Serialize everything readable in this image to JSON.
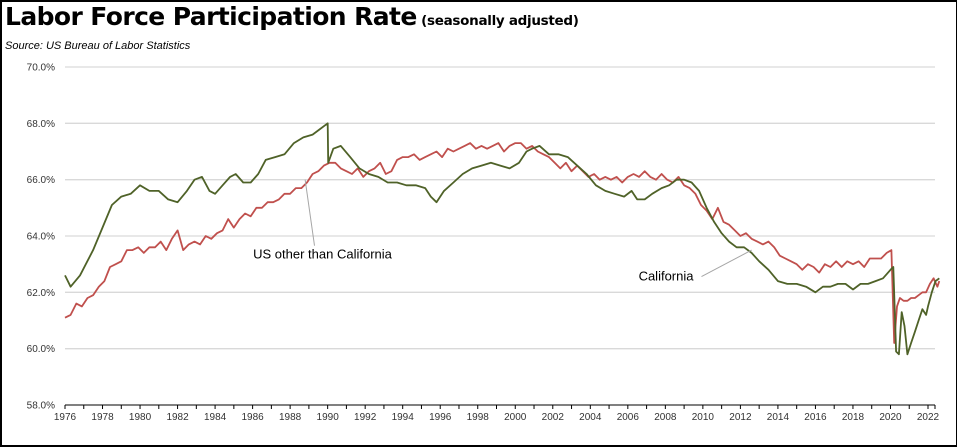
{
  "header": {
    "title": "Labor Force Participation Rate",
    "subtitle": "(seasonally adjusted)",
    "source": "Source:  US Bureau of Labor Statistics"
  },
  "chart_data": {
    "type": "line",
    "title": "Labor Force Participation Rate (seasonally adjusted)",
    "xlabel": "",
    "ylabel": "",
    "xlim": [
      1976,
      2022.7
    ],
    "ylim": [
      58.0,
      70.0
    ],
    "grid": true,
    "y_ticks": [
      "58.0%",
      "60.0%",
      "62.0%",
      "64.0%",
      "66.0%",
      "68.0%",
      "70.0%"
    ],
    "y_tick_values": [
      58,
      60,
      62,
      64,
      66,
      68,
      70
    ],
    "x_ticks": [
      "1976",
      "1978",
      "1980",
      "1982",
      "1984",
      "1986",
      "1988",
      "1990",
      "1992",
      "1994",
      "1996",
      "1998",
      "2000",
      "2002",
      "2004",
      "2006",
      "2008",
      "2010",
      "2012",
      "2014",
      "2016",
      "2018",
      "2020",
      "2022"
    ],
    "x_tick_values": [
      1976,
      1978,
      1980,
      1982,
      1984,
      1986,
      1988,
      1990,
      1992,
      1994,
      1996,
      1998,
      2000,
      2002,
      2004,
      2006,
      2008,
      2010,
      2012,
      2014,
      2016,
      2018,
      2020,
      2022
    ],
    "legend": "annotations",
    "series": [
      {
        "name": "California",
        "color": "#4f6228",
        "annotation": {
          "label": "California",
          "at": [
            2012.6,
            63.5
          ],
          "label_at": [
            2009.5,
            62.7
          ]
        },
        "x": [
          1976.0,
          1976.3,
          1976.8,
          1977.5,
          1978.0,
          1978.5,
          1979.0,
          1979.5,
          1980.0,
          1980.5,
          1981.0,
          1981.5,
          1982.0,
          1982.5,
          1982.9,
          1983.3,
          1983.7,
          1984.0,
          1984.4,
          1984.8,
          1985.1,
          1985.5,
          1985.9,
          1986.3,
          1986.7,
          1987.2,
          1987.7,
          1988.2,
          1988.7,
          1989.2,
          1989.6,
          1990.0,
          1990.03,
          1990.3,
          1990.7,
          1991.2,
          1991.7,
          1992.2,
          1992.7,
          1993.2,
          1993.7,
          1994.2,
          1994.7,
          1995.2,
          1995.5,
          1995.8,
          1996.2,
          1996.7,
          1997.2,
          1997.7,
          1998.2,
          1998.7,
          1999.2,
          1999.7,
          2000.2,
          2000.6,
          2000.9,
          2001.3,
          2001.8,
          2002.3,
          2002.8,
          2003.3,
          2003.8,
          2004.3,
          2004.8,
          2005.3,
          2005.8,
          2006.2,
          2006.5,
          2006.9,
          2007.3,
          2007.8,
          2008.2,
          2008.6,
          2009.0,
          2009.4,
          2009.8,
          2010.2,
          2010.6,
          2011.0,
          2011.4,
          2011.8,
          2012.2,
          2012.6,
          2013.0,
          2013.5,
          2014.0,
          2014.5,
          2015.0,
          2015.5,
          2016.0,
          2016.4,
          2016.8,
          2017.2,
          2017.6,
          2018.0,
          2018.4,
          2018.8,
          2019.2,
          2019.6,
          2020.0,
          2020.15,
          2020.3,
          2020.45,
          2020.6,
          2020.75,
          2020.9,
          2021.1,
          2021.3,
          2021.5,
          2021.7,
          2021.9,
          2022.0,
          2022.2,
          2022.4,
          2022.6
        ],
        "values": [
          62.6,
          62.2,
          62.6,
          63.5,
          64.3,
          65.1,
          65.4,
          65.5,
          65.8,
          65.6,
          65.6,
          65.3,
          65.2,
          65.6,
          66.0,
          66.1,
          65.6,
          65.5,
          65.8,
          66.1,
          66.2,
          65.9,
          65.9,
          66.2,
          66.7,
          66.8,
          66.9,
          67.3,
          67.5,
          67.6,
          67.8,
          68.0,
          66.6,
          67.1,
          67.2,
          66.8,
          66.4,
          66.2,
          66.1,
          65.9,
          65.9,
          65.8,
          65.8,
          65.7,
          65.4,
          65.2,
          65.6,
          65.9,
          66.2,
          66.4,
          66.5,
          66.6,
          66.5,
          66.4,
          66.6,
          67.0,
          67.1,
          67.2,
          66.9,
          66.9,
          66.8,
          66.5,
          66.2,
          65.8,
          65.6,
          65.5,
          65.4,
          65.6,
          65.3,
          65.3,
          65.5,
          65.7,
          65.8,
          66.0,
          66.0,
          65.9,
          65.6,
          65.0,
          64.5,
          64.1,
          63.8,
          63.6,
          63.6,
          63.4,
          63.1,
          62.8,
          62.4,
          62.3,
          62.3,
          62.2,
          62.0,
          62.2,
          62.2,
          62.3,
          62.3,
          62.1,
          62.3,
          62.3,
          62.4,
          62.5,
          62.8,
          62.9,
          59.9,
          59.8,
          61.3,
          60.8,
          59.8,
          60.2,
          60.6,
          61.0,
          61.4,
          61.2,
          61.5,
          62.0,
          62.4,
          62.5
        ]
      },
      {
        "name": "US other than California",
        "color": "#c0504d",
        "annotation": {
          "label": "US other than California",
          "at": [
            1988.8,
            66.0
          ],
          "label_at": [
            1988.5,
            63.3
          ]
        },
        "x": [
          1976.0,
          1976.3,
          1976.6,
          1976.9,
          1977.2,
          1977.5,
          1977.8,
          1978.1,
          1978.4,
          1978.7,
          1979.0,
          1979.3,
          1979.6,
          1979.9,
          1980.2,
          1980.5,
          1980.8,
          1981.1,
          1981.4,
          1981.7,
          1982.0,
          1982.3,
          1982.6,
          1982.9,
          1983.2,
          1983.5,
          1983.8,
          1984.1,
          1984.4,
          1984.7,
          1985.0,
          1985.3,
          1985.6,
          1985.9,
          1986.2,
          1986.5,
          1986.8,
          1987.1,
          1987.4,
          1987.7,
          1988.0,
          1988.3,
          1988.6,
          1988.9,
          1989.2,
          1989.5,
          1989.8,
          1990.1,
          1990.4,
          1990.7,
          1991.0,
          1991.3,
          1991.6,
          1991.9,
          1992.2,
          1992.5,
          1992.8,
          1993.1,
          1993.4,
          1993.7,
          1994.0,
          1994.3,
          1994.6,
          1994.9,
          1995.2,
          1995.5,
          1995.8,
          1996.1,
          1996.4,
          1996.7,
          1997.0,
          1997.3,
          1997.6,
          1997.9,
          1998.2,
          1998.5,
          1998.8,
          1999.1,
          1999.4,
          1999.7,
          2000.0,
          2000.3,
          2000.6,
          2000.9,
          2001.2,
          2001.5,
          2001.8,
          2002.1,
          2002.4,
          2002.7,
          2003.0,
          2003.3,
          2003.6,
          2003.9,
          2004.2,
          2004.5,
          2004.8,
          2005.1,
          2005.4,
          2005.7,
          2006.0,
          2006.3,
          2006.6,
          2006.9,
          2007.2,
          2007.5,
          2007.8,
          2008.1,
          2008.4,
          2008.7,
          2009.0,
          2009.3,
          2009.6,
          2009.9,
          2010.2,
          2010.5,
          2010.8,
          2011.1,
          2011.4,
          2011.7,
          2012.0,
          2012.3,
          2012.6,
          2012.9,
          2013.2,
          2013.5,
          2013.8,
          2014.1,
          2014.4,
          2014.7,
          2015.0,
          2015.3,
          2015.6,
          2015.9,
          2016.2,
          2016.5,
          2016.8,
          2017.1,
          2017.4,
          2017.7,
          2018.0,
          2018.3,
          2018.6,
          2018.9,
          2019.2,
          2019.5,
          2019.8,
          2020.05,
          2020.2,
          2020.35,
          2020.5,
          2020.7,
          2020.9,
          2021.1,
          2021.3,
          2021.5,
          2021.7,
          2021.9,
          2022.1,
          2022.3,
          2022.5,
          2022.6
        ],
        "values": [
          61.1,
          61.2,
          61.6,
          61.5,
          61.8,
          61.9,
          62.2,
          62.4,
          62.9,
          63.0,
          63.1,
          63.5,
          63.5,
          63.6,
          63.4,
          63.6,
          63.6,
          63.8,
          63.5,
          63.9,
          64.2,
          63.5,
          63.7,
          63.8,
          63.7,
          64.0,
          63.9,
          64.1,
          64.2,
          64.6,
          64.3,
          64.6,
          64.8,
          64.7,
          65.0,
          65.0,
          65.2,
          65.2,
          65.3,
          65.5,
          65.5,
          65.7,
          65.7,
          65.9,
          66.2,
          66.3,
          66.5,
          66.6,
          66.6,
          66.4,
          66.3,
          66.2,
          66.4,
          66.1,
          66.3,
          66.4,
          66.6,
          66.2,
          66.3,
          66.7,
          66.8,
          66.8,
          66.9,
          66.7,
          66.8,
          66.9,
          67.0,
          66.8,
          67.1,
          67.0,
          67.1,
          67.2,
          67.3,
          67.1,
          67.2,
          67.1,
          67.2,
          67.3,
          67.0,
          67.2,
          67.3,
          67.3,
          67.1,
          67.2,
          67.0,
          66.9,
          66.8,
          66.6,
          66.4,
          66.6,
          66.3,
          66.5,
          66.3,
          66.1,
          66.2,
          66.0,
          66.1,
          66.0,
          66.1,
          65.9,
          66.1,
          66.2,
          66.1,
          66.3,
          66.1,
          66.0,
          66.2,
          66.0,
          65.9,
          66.1,
          65.8,
          65.7,
          65.5,
          65.1,
          64.9,
          64.6,
          65.0,
          64.5,
          64.4,
          64.2,
          64.0,
          64.1,
          63.9,
          63.8,
          63.7,
          63.8,
          63.6,
          63.3,
          63.2,
          63.1,
          63.0,
          62.8,
          63.0,
          62.9,
          62.7,
          63.0,
          62.9,
          63.1,
          62.9,
          63.1,
          63.0,
          63.1,
          62.9,
          63.2,
          63.2,
          63.2,
          63.4,
          63.5,
          60.2,
          61.5,
          61.8,
          61.7,
          61.7,
          61.8,
          61.8,
          61.9,
          62.0,
          62.0,
          62.3,
          62.5,
          62.2,
          62.4
        ]
      }
    ]
  }
}
